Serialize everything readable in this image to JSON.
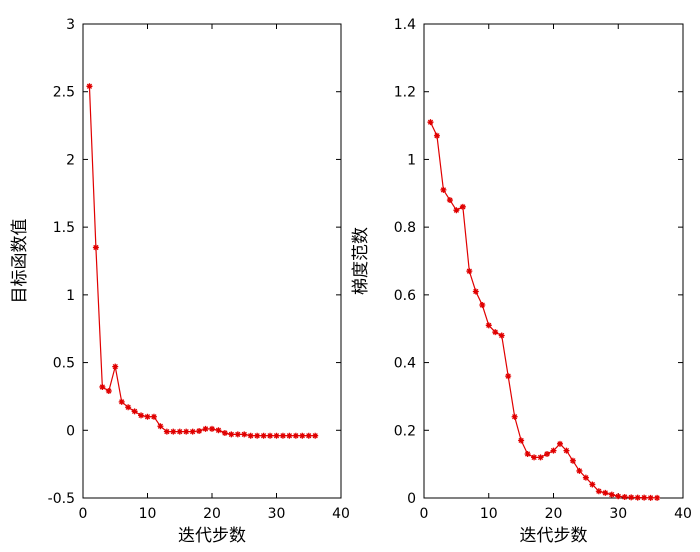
{
  "chart_data": [
    {
      "type": "line",
      "xlabel": "迭代步数",
      "ylabel": "目标函数值",
      "xlim": [
        0,
        40
      ],
      "ylim": [
        -0.5,
        3
      ],
      "xticks": [
        0,
        10,
        20,
        30,
        40
      ],
      "yticks": [
        -0.5,
        0,
        0.5,
        1,
        1.5,
        2,
        2.5,
        3
      ],
      "xtick_labels": [
        "0",
        "10",
        "20",
        "30",
        "40"
      ],
      "ytick_labels": [
        "-0.5",
        "0",
        "0.5",
        "1",
        "1.5",
        "2",
        "2.5",
        "3"
      ],
      "grid": false,
      "series": [
        {
          "color": "#e00000",
          "marker": "star",
          "x": [
            1,
            2,
            3,
            4,
            5,
            6,
            7,
            8,
            9,
            10,
            11,
            12,
            13,
            14,
            15,
            16,
            17,
            18,
            19,
            20,
            21,
            22,
            23,
            24,
            25,
            26,
            27,
            28,
            29,
            30,
            31,
            32,
            33,
            34,
            35,
            36
          ],
          "y": [
            2.54,
            1.35,
            0.32,
            0.29,
            0.47,
            0.21,
            0.17,
            0.14,
            0.11,
            0.1,
            0.1,
            0.03,
            -0.01,
            -0.01,
            -0.01,
            -0.01,
            -0.01,
            -0.005,
            0.01,
            0.01,
            0.0,
            -0.02,
            -0.03,
            -0.03,
            -0.03,
            -0.04,
            -0.04,
            -0.04,
            -0.04,
            -0.04,
            -0.04,
            -0.04,
            -0.04,
            -0.04,
            -0.04,
            -0.04
          ]
        }
      ]
    },
    {
      "type": "line",
      "xlabel": "迭代步数",
      "ylabel": "梯度范数",
      "xlim": [
        0,
        40
      ],
      "ylim": [
        0,
        1.4
      ],
      "xticks": [
        0,
        10,
        20,
        30,
        40
      ],
      "yticks": [
        0,
        0.2,
        0.4,
        0.6,
        0.8,
        1,
        1.2,
        1.4
      ],
      "xtick_labels": [
        "0",
        "10",
        "20",
        "30",
        "40"
      ],
      "ytick_labels": [
        "0",
        "0.2",
        "0.4",
        "0.6",
        "0.8",
        "1",
        "1.2",
        "1.4"
      ],
      "grid": false,
      "series": [
        {
          "color": "#e00000",
          "marker": "star",
          "x": [
            1,
            2,
            3,
            4,
            5,
            6,
            7,
            8,
            9,
            10,
            11,
            12,
            13,
            14,
            15,
            16,
            17,
            18,
            19,
            20,
            21,
            22,
            23,
            24,
            25,
            26,
            27,
            28,
            29,
            30,
            31,
            32,
            33,
            34,
            35,
            36
          ],
          "y": [
            1.11,
            1.07,
            0.91,
            0.88,
            0.85,
            0.86,
            0.67,
            0.61,
            0.57,
            0.51,
            0.49,
            0.48,
            0.36,
            0.24,
            0.17,
            0.13,
            0.12,
            0.12,
            0.13,
            0.14,
            0.16,
            0.14,
            0.11,
            0.08,
            0.06,
            0.04,
            0.02,
            0.015,
            0.01,
            0.005,
            0.003,
            0.002,
            0.001,
            0.001,
            0.0005,
            0.0003
          ]
        }
      ]
    }
  ]
}
